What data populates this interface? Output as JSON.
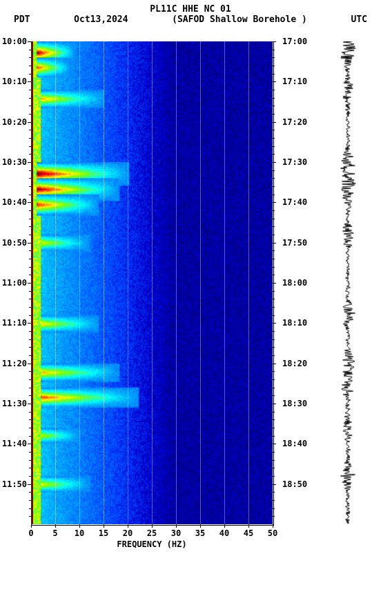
{
  "header": {
    "title": "PL11C HHE NC 01",
    "left_tz": "PDT",
    "date": "Oct13,2024",
    "station": "(SAFOD Shallow Borehole )",
    "right_tz": "UTC"
  },
  "plot": {
    "type": "spectrogram",
    "background_color": "#000080",
    "left_edge_color": "#800000",
    "grid_color": "rgba(255,255,255,0.35)",
    "colormap": [
      "#000080",
      "#0000cd",
      "#0040ff",
      "#0080ff",
      "#00bfff",
      "#00ffff",
      "#40ff80",
      "#80ff00",
      "#ffff00",
      "#ff8000",
      "#ff0000",
      "#800000"
    ],
    "x": {
      "title": "FREQUENCY (HZ)",
      "min": 0,
      "max": 50,
      "ticks": [
        0,
        5,
        10,
        15,
        20,
        25,
        30,
        35,
        40,
        45,
        50
      ],
      "gridlines": [
        5,
        10,
        15,
        20,
        25,
        30,
        35,
        40,
        45
      ]
    },
    "y_left": {
      "label_ticks": [
        "10:00",
        "10:10",
        "10:20",
        "10:30",
        "10:40",
        "10:50",
        "11:00",
        "11:10",
        "11:20",
        "11:30",
        "11:40",
        "11:50"
      ],
      "minor_per_major": 5,
      "minutes_span": 120
    },
    "y_right": {
      "label_ticks": [
        "17:00",
        "17:10",
        "17:20",
        "17:30",
        "17:40",
        "17:50",
        "18:00",
        "18:10",
        "18:20",
        "18:30",
        "18:40",
        "18:50"
      ]
    },
    "hot_bands": [
      {
        "t": 0,
        "f0": 1,
        "f1": 9,
        "intensity": 0.95
      },
      {
        "t": 4,
        "f0": 1,
        "f1": 8,
        "intensity": 0.8
      },
      {
        "t": 12,
        "f0": 2,
        "f1": 15,
        "intensity": 0.7
      },
      {
        "t": 30,
        "f0": 1,
        "f1": 20,
        "intensity": 1.0
      },
      {
        "t": 34,
        "f0": 1,
        "f1": 18,
        "intensity": 0.95
      },
      {
        "t": 38,
        "f0": 1,
        "f1": 14,
        "intensity": 0.85
      },
      {
        "t": 48,
        "f0": 2,
        "f1": 12,
        "intensity": 0.6
      },
      {
        "t": 68,
        "f0": 2,
        "f1": 14,
        "intensity": 0.65
      },
      {
        "t": 80,
        "f0": 2,
        "f1": 18,
        "intensity": 0.7
      },
      {
        "t": 86,
        "f0": 2,
        "f1": 22,
        "intensity": 0.8
      },
      {
        "t": 96,
        "f0": 2,
        "f1": 10,
        "intensity": 0.55
      },
      {
        "t": 108,
        "f0": 2,
        "f1": 12,
        "intensity": 0.6
      }
    ]
  },
  "waveform": {
    "color": "#000000",
    "amplitude_events": [
      0,
      4,
      12,
      30,
      34,
      38,
      48,
      68,
      80,
      86,
      96,
      108
    ]
  }
}
